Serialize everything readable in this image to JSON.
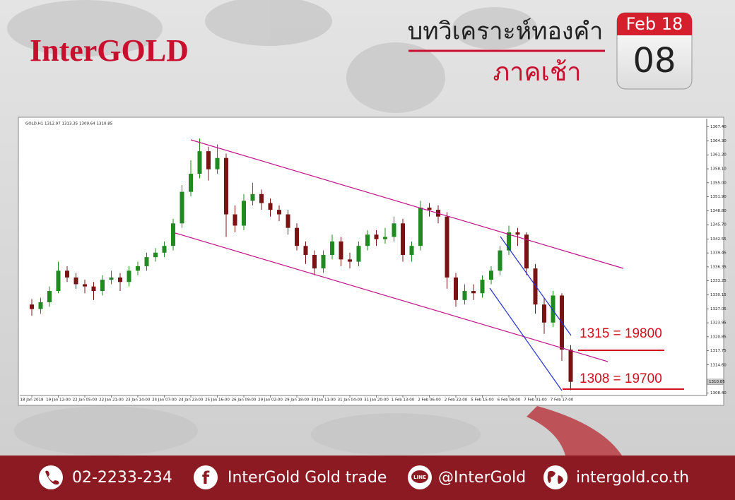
{
  "header": {
    "logo": "InterGOLD",
    "title": "บทวิเคราะห์ทองคำ",
    "subtitle": "ภาคเช้า",
    "calendar_month": "Feb 18",
    "calendar_day": "08"
  },
  "chart_data": {
    "type": "candlestick",
    "title": "GOLD,H1  1312.97 1313.35 1309.64 1310.85",
    "up_color": "#1f8a1f",
    "down_color": "#7a1414",
    "categories": [
      "18 Jan 2018",
      null,
      null,
      "19 Jan 12:00",
      null,
      null,
      "22 Jan 05:00",
      null,
      null,
      "22 Jan 21:00",
      null,
      null,
      "23 Jan 14:00",
      null,
      null,
      "24 Jan 07:00",
      null,
      null,
      "24 Jan 23:00",
      null,
      null,
      "25 Jan 16:00",
      null,
      null,
      "26 Jan 09:00",
      null,
      null,
      "29 Jan 02:00",
      null,
      null,
      "29 Jan 18:00",
      null,
      null,
      "30 Jan 11:00",
      null,
      null,
      "31 Jan 04:00",
      null,
      null,
      "31 Jan 20:00",
      null,
      null,
      "1 Feb 13:00",
      null,
      null,
      "2 Feb 06:00",
      null,
      null,
      "2 Feb 22:00",
      null,
      null,
      "5 Feb 15:00",
      null,
      null,
      "6 Feb 08:00",
      null,
      null,
      "7 Feb 01:00",
      null,
      null,
      "7 Feb 17:00",
      null
    ],
    "open": [
      1328,
      1327,
      1328.5,
      1331,
      1335.5,
      1334,
      1332.5,
      1332,
      1331,
      1333.5,
      1334,
      1333,
      1335.5,
      1336.5,
      1338.5,
      1339.5,
      1341,
      1346,
      1353,
      1357,
      1362,
      1358,
      1360.5,
      1348,
      1345.5,
      1351,
      1352.5,
      1350.5,
      1349,
      1348,
      1345,
      1341,
      1339,
      1336,
      1339,
      1342,
      1338,
      1337.5,
      1341,
      1343.5,
      1342.5,
      1343,
      1346,
      1339,
      1341,
      1349.5,
      1349,
      1347.5,
      1334,
      1329,
      1331,
      1330.5,
      1333.5,
      1335.5,
      1340,
      1344,
      1343.5,
      1336,
      1328,
      1324,
      1330,
      1318
    ],
    "high": [
      1329.2,
      1329.5,
      1332,
      1337.5,
      1336.5,
      1335,
      1333.5,
      1333,
      1334.5,
      1335.5,
      1335,
      1336.5,
      1337.5,
      1339.5,
      1340.5,
      1342,
      1347,
      1354.5,
      1360,
      1364.8,
      1363,
      1363.5,
      1361.5,
      1350,
      1352.5,
      1355,
      1353.5,
      1351.5,
      1350,
      1349,
      1346,
      1342,
      1340,
      1340,
      1343.5,
      1343,
      1339.5,
      1342,
      1344.5,
      1344.5,
      1345,
      1347.5,
      1347,
      1342,
      1351,
      1350.5,
      1350,
      1348.5,
      1335,
      1332.5,
      1332.5,
      1334.5,
      1336.5,
      1341,
      1345.5,
      1345,
      1344,
      1337,
      1329.5,
      1331,
      1330.5,
      1319
    ],
    "low": [
      1325.5,
      1326,
      1327.5,
      1330.5,
      1333,
      1331.5,
      1330.5,
      1329,
      1330,
      1332.5,
      1331,
      1332,
      1334.5,
      1335.5,
      1337.5,
      1338.5,
      1340,
      1345,
      1352,
      1356,
      1355.5,
      1357,
      1343,
      1344,
      1344.5,
      1350,
      1349,
      1347.5,
      1346.5,
      1343.5,
      1340,
      1337,
      1334.5,
      1335,
      1338,
      1336.5,
      1336,
      1336.5,
      1340,
      1341,
      1341.5,
      1342,
      1337.5,
      1337.5,
      1340,
      1347.5,
      1346,
      1331.5,
      1327.5,
      1328,
      1329,
      1329.5,
      1332.5,
      1334.5,
      1339,
      1341,
      1334.5,
      1326,
      1321.5,
      1323,
      1315.5,
      1309
    ],
    "close": [
      1327,
      1328.5,
      1331,
      1335.5,
      1334,
      1332.5,
      1332,
      1331,
      1333.5,
      1334,
      1333,
      1335.5,
      1336.5,
      1338.5,
      1339.5,
      1341,
      1346,
      1353,
      1357,
      1362,
      1358,
      1360.5,
      1348,
      1345.5,
      1351,
      1352.5,
      1350.5,
      1349,
      1348,
      1345,
      1341,
      1339,
      1336,
      1339,
      1342,
      1338,
      1337.5,
      1341,
      1343.5,
      1342.5,
      1343,
      1346,
      1339,
      1341,
      1349.5,
      1349,
      1347.5,
      1334,
      1329,
      1331,
      1330.5,
      1333.5,
      1335.5,
      1340,
      1344,
      1343.5,
      1336,
      1328,
      1324,
      1330,
      1318,
      1310.85
    ],
    "ylim": [
      1307.2,
      1368.6
    ],
    "yticks": [
      {
        "value": 1367.4,
        "label": "1367.40"
      },
      {
        "value": 1364.3,
        "label": "1364.30"
      },
      {
        "value": 1361.2,
        "label": "1361.20"
      },
      {
        "value": 1358.1,
        "label": "1358.10"
      },
      {
        "value": 1355,
        "label": "1355.00"
      },
      {
        "value": 1351.9,
        "label": "1351.90"
      },
      {
        "value": 1348.8,
        "label": "1348.80"
      },
      {
        "value": 1345.7,
        "label": "1345.70"
      },
      1342.55,
      1339.45,
      1336.35,
      1333.25,
      1330.15,
      1327.05,
      1323.95,
      1320.85,
      1317.75,
      {
        "value": 1314.6,
        "label": "1314.60"
      },
      {
        "value": 1308.4,
        "label": "1308.40"
      }
    ],
    "annotations": [
      "1315 = 19800",
      "1308 = 19700"
    ]
  },
  "footer": {
    "phone": "02-2233-234",
    "facebook": "InterGold Gold trade",
    "line": "@InterGold",
    "website": "intergold.co.th"
  }
}
